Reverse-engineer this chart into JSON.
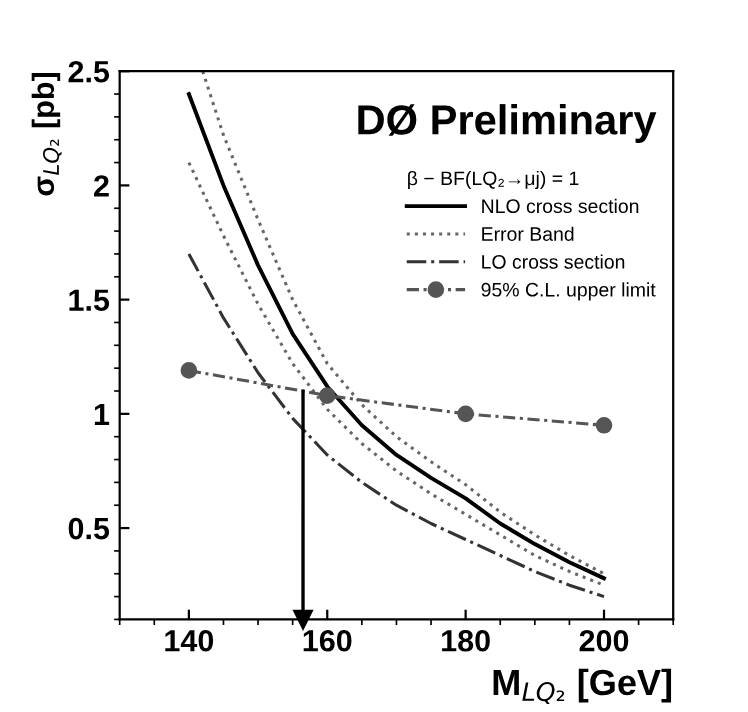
{
  "chart_data": {
    "type": "line",
    "title": "DØ Preliminary",
    "xlabel": "M$_{LQ₂}$ [GeV]",
    "ylabel": "σ$_{LQ₂}$ [pb]",
    "legend_title": "β − BF(LQ₂→μj) = 1",
    "xlim": [
      130,
      210
    ],
    "xticks": [
      140,
      160,
      180,
      200
    ],
    "ylim": [
      0.1,
      2.5
    ],
    "yticks": [
      0.5,
      1,
      1.5,
      2,
      2.5
    ],
    "grid": false,
    "legend": "top right",
    "series": [
      {
        "name": "NLO cross section",
        "color": "#000000",
        "line_style": "solid",
        "marker": "none",
        "x": [
          140,
          145,
          150,
          155,
          160,
          165,
          170,
          175,
          180,
          185,
          190,
          195,
          200
        ],
        "values": [
          2.4,
          2.0,
          1.65,
          1.35,
          1.12,
          0.95,
          0.82,
          0.72,
          0.63,
          0.52,
          0.43,
          0.35,
          0.28
        ]
      },
      {
        "name": "Error Band",
        "color": "#666666",
        "line_style": "dotted",
        "marker": "none",
        "x": [
          142,
          145,
          150,
          155,
          160,
          165,
          170,
          175,
          180,
          185,
          190,
          195,
          200
        ],
        "values": [
          2.5,
          2.22,
          1.85,
          1.5,
          1.22,
          1.04,
          0.9,
          0.79,
          0.69,
          0.57,
          0.47,
          0.38,
          0.3
        ]
      },
      {
        "color": "#666666",
        "line_style": "dotted",
        "marker": "none",
        "x": [
          140,
          145,
          150,
          155,
          160,
          165,
          170,
          175,
          180,
          185,
          190,
          195,
          200
        ],
        "values": [
          2.1,
          1.78,
          1.48,
          1.22,
          1.02,
          0.87,
          0.75,
          0.65,
          0.56,
          0.47,
          0.38,
          0.31,
          0.25
        ]
      },
      {
        "name": "LO cross section",
        "color": "#333333",
        "line_style": "dashdot",
        "marker": "none",
        "x": [
          140,
          145,
          150,
          155,
          160,
          165,
          170,
          175,
          180,
          185,
          190,
          195,
          200
        ],
        "values": [
          1.7,
          1.42,
          1.18,
          0.98,
          0.82,
          0.7,
          0.6,
          0.52,
          0.45,
          0.38,
          0.31,
          0.25,
          0.2
        ]
      },
      {
        "name": "95% C.L. upper limit",
        "color": "#555555",
        "line_style": "dashed",
        "marker": "circle",
        "x": [
          140,
          160,
          180,
          200
        ],
        "values": [
          1.19,
          1.08,
          1.0,
          0.95
        ]
      }
    ],
    "ref_lines": [
      {
        "axis": "x",
        "value": 156.5,
        "color": "#000000",
        "line_style": "solid"
      }
    ]
  }
}
